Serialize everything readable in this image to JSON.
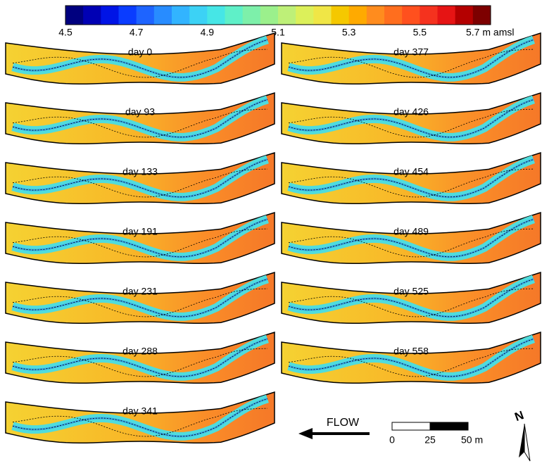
{
  "colorbar": {
    "ticks": [
      "4.5",
      "4.7",
      "4.9",
      "5.1",
      "5.3",
      "5.5",
      "5.7 m amsl"
    ],
    "colors": [
      "#00007f",
      "#0000b4",
      "#0014e6",
      "#0a3cff",
      "#1e64ff",
      "#288cff",
      "#32b4ff",
      "#3cd2f5",
      "#46e6e6",
      "#5ff0c8",
      "#7df0aa",
      "#9bf08c",
      "#bef078",
      "#dcf05a",
      "#f0e646",
      "#f5c800",
      "#ffaa00",
      "#ff8c1e",
      "#ff6e1e",
      "#ff501e",
      "#f5321e",
      "#e61414",
      "#b40000",
      "#7d0000"
    ]
  },
  "panels": [
    {
      "label": "day 0"
    },
    {
      "label": "day 93"
    },
    {
      "label": "day 133"
    },
    {
      "label": "day 191"
    },
    {
      "label": "day 231"
    },
    {
      "label": "day 288"
    },
    {
      "label": "day 341"
    },
    {
      "label": "day 377"
    },
    {
      "label": "day 426"
    },
    {
      "label": "day 454"
    },
    {
      "label": "day 489"
    },
    {
      "label": "day 525"
    },
    {
      "label": "day 558"
    }
  ],
  "flow": "FLOW",
  "scale_bar": {
    "ticks": [
      "0",
      "25",
      "50 m"
    ]
  },
  "north": "N"
}
